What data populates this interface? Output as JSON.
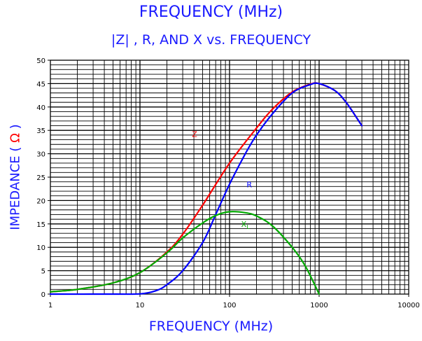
{
  "header": {
    "title": "FREQUENCY (MHz)",
    "subtitle": "|Z| , R, AND X vs. FREQUENCY"
  },
  "chart_data": {
    "type": "line",
    "title": "|Z| , R, AND X vs. FREQUENCY",
    "xlabel": "FREQUENCY (MHz)",
    "ylabel": "IMPEDANCE",
    "ylabel_unit": "Ω",
    "xscale": "log",
    "xlim": [
      1,
      10000
    ],
    "ylim": [
      0,
      50
    ],
    "x_ticks": [
      1,
      10,
      100,
      1000,
      10000
    ],
    "x_tick_labels": [
      "1",
      "10",
      "100",
      "1000",
      "10000"
    ],
    "y_ticks": [
      0,
      5,
      10,
      15,
      20,
      25,
      30,
      35,
      40,
      45,
      50
    ],
    "y_tick_labels": [
      "0",
      "5",
      "10",
      "15",
      "20",
      "25",
      "30",
      "35",
      "40",
      "45",
      "50"
    ],
    "grid": true,
    "series": [
      {
        "name": "Z",
        "label": "Z",
        "color": "#ff0000",
        "x": [
          1,
          2,
          5,
          10,
          20,
          30,
          50,
          100,
          200,
          300,
          500,
          800,
          1000,
          1500,
          2000,
          3000
        ],
        "y": [
          0.5,
          1.0,
          2.4,
          4.6,
          9.0,
          12.8,
          19.0,
          28.0,
          35.5,
          39.5,
          43.2,
          44.9,
          45.0,
          43.5,
          41.0,
          36.0
        ]
      },
      {
        "name": "R",
        "label": "R",
        "color": "#0000ff",
        "x": [
          1,
          5,
          10,
          15,
          20,
          30,
          50,
          70,
          100,
          150,
          200,
          300,
          500,
          800,
          1000,
          1500,
          2000,
          3000
        ],
        "y": [
          0,
          0,
          0.05,
          0.7,
          2.0,
          5.0,
          11.0,
          17.0,
          23.5,
          30.0,
          34.0,
          38.5,
          43.0,
          44.8,
          45.0,
          43.5,
          41.0,
          36.0
        ]
      },
      {
        "name": "XL",
        "label": "XL",
        "color": "#00aa00",
        "x": [
          1,
          2,
          5,
          10,
          20,
          30,
          50,
          70,
          100,
          150,
          200,
          300,
          500,
          700,
          1000
        ],
        "y": [
          0.5,
          1.0,
          2.4,
          4.6,
          8.8,
          12.0,
          15.2,
          16.8,
          17.6,
          17.4,
          16.7,
          14.6,
          10.0,
          6.0,
          0.0
        ]
      }
    ]
  }
}
